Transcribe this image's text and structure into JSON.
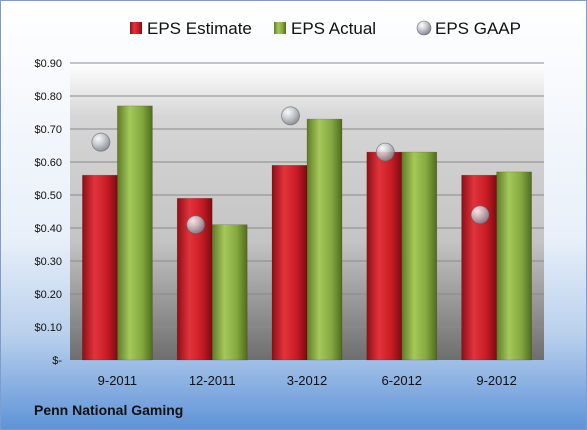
{
  "chart_data": {
    "type": "bar",
    "categories": [
      "9-2011",
      "12-2011",
      "3-2012",
      "6-2012",
      "9-2012"
    ],
    "series": [
      {
        "name": "EPS Estimate",
        "kind": "bar",
        "color": "#c0141e",
        "values": [
          0.56,
          0.49,
          0.59,
          0.63,
          0.56
        ]
      },
      {
        "name": "EPS Actual",
        "kind": "bar",
        "color": "#7ea33a",
        "values": [
          0.77,
          0.41,
          0.73,
          0.63,
          0.57
        ]
      },
      {
        "name": "EPS GAAP",
        "kind": "point",
        "color": "#b9bcc4",
        "values": [
          0.66,
          0.41,
          0.74,
          0.63,
          0.44
        ]
      }
    ],
    "ylim": [
      0,
      0.9
    ],
    "yticks": [
      0,
      0.1,
      0.2,
      0.3,
      0.4,
      0.5,
      0.6,
      0.7,
      0.8,
      0.9
    ],
    "ytick_labels": [
      "$-",
      "$0.10",
      "$0.20",
      "$0.30",
      "$0.40",
      "$0.50",
      "$0.60",
      "$0.70",
      "$0.80",
      "$0.90"
    ],
    "grid": true,
    "legend_position": "top"
  },
  "footer": {
    "company": "Penn National Gaming"
  }
}
